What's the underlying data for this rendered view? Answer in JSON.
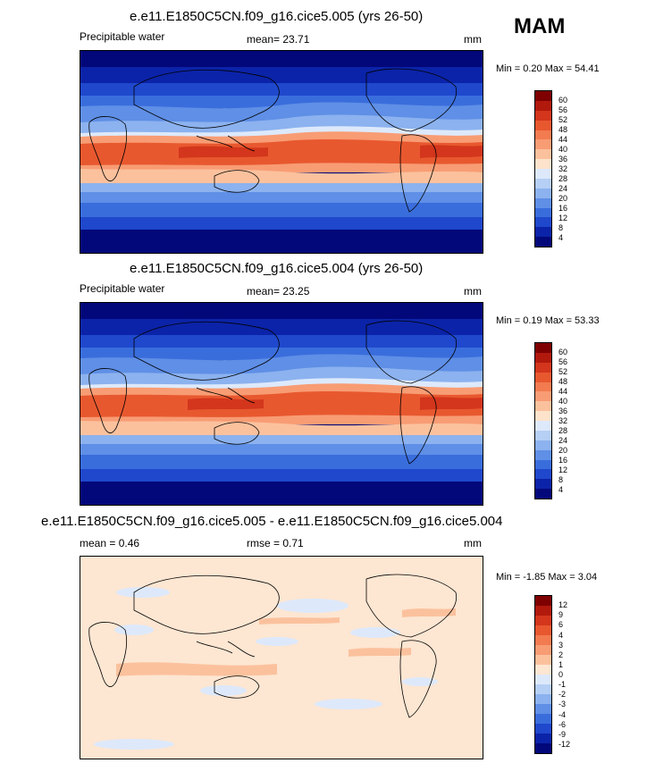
{
  "season": "MAM",
  "panels": [
    {
      "title": "e.e11.E1850C5CN.f09_g16.cice5.005 (yrs 26-50)",
      "left_label": "Precipitable water",
      "center_label": "mean=  23.71",
      "units": "mm",
      "minmax": "Min =   0.20 Max =  54.41",
      "colorbar": {
        "labels": [
          "60",
          "56",
          "52",
          "48",
          "44",
          "40",
          "36",
          "32",
          "28",
          "24",
          "20",
          "16",
          "12",
          "8",
          "4"
        ],
        "colors": [
          "#7f0000",
          "#b2190d",
          "#d3361c",
          "#e8582f",
          "#f37b50",
          "#f89c74",
          "#fbc19d",
          "#fde3cc",
          "#dde9fb",
          "#b6cff5",
          "#8cb2ef",
          "#5f8fe6",
          "#3a6ddc",
          "#1f48cc",
          "#0b23a8",
          "#02087a"
        ]
      }
    },
    {
      "title": "e.e11.E1850C5CN.f09_g16.cice5.004 (yrs 26-50)",
      "left_label": "Precipitable water",
      "center_label": "mean=  23.25",
      "units": "mm",
      "minmax": "Min =   0.19 Max =  53.33",
      "colorbar": {
        "labels": [
          "60",
          "56",
          "52",
          "48",
          "44",
          "40",
          "36",
          "32",
          "28",
          "24",
          "20",
          "16",
          "12",
          "8",
          "4"
        ],
        "colors": [
          "#7f0000",
          "#b2190d",
          "#d3361c",
          "#e8582f",
          "#f37b50",
          "#f89c74",
          "#fbc19d",
          "#fde3cc",
          "#dde9fb",
          "#b6cff5",
          "#8cb2ef",
          "#5f8fe6",
          "#3a6ddc",
          "#1f48cc",
          "#0b23a8",
          "#02087a"
        ]
      }
    },
    {
      "title": "e.e11.E1850C5CN.f09_g16.cice5.005 - e.e11.E1850C5CN.f09_g16.cice5.004",
      "left_label": "mean =   0.46",
      "center_label": "rmse =   0.71",
      "units": "mm",
      "minmax": "Min =  -1.85 Max =   3.04",
      "colorbar": {
        "labels": [
          "12",
          "9",
          "6",
          "4",
          "3",
          "2",
          "1",
          "0",
          "-1",
          "-2",
          "-3",
          "-4",
          "-6",
          "-9",
          "-12"
        ],
        "colors": [
          "#7f0000",
          "#b2190d",
          "#d3361c",
          "#e8582f",
          "#f37b50",
          "#f89c74",
          "#fbc19d",
          "#fde6d2",
          "#dde9fb",
          "#b6cff5",
          "#8cb2ef",
          "#5f8fe6",
          "#3a6ddc",
          "#1f48cc",
          "#0b23a8",
          "#02087a"
        ]
      }
    }
  ]
}
